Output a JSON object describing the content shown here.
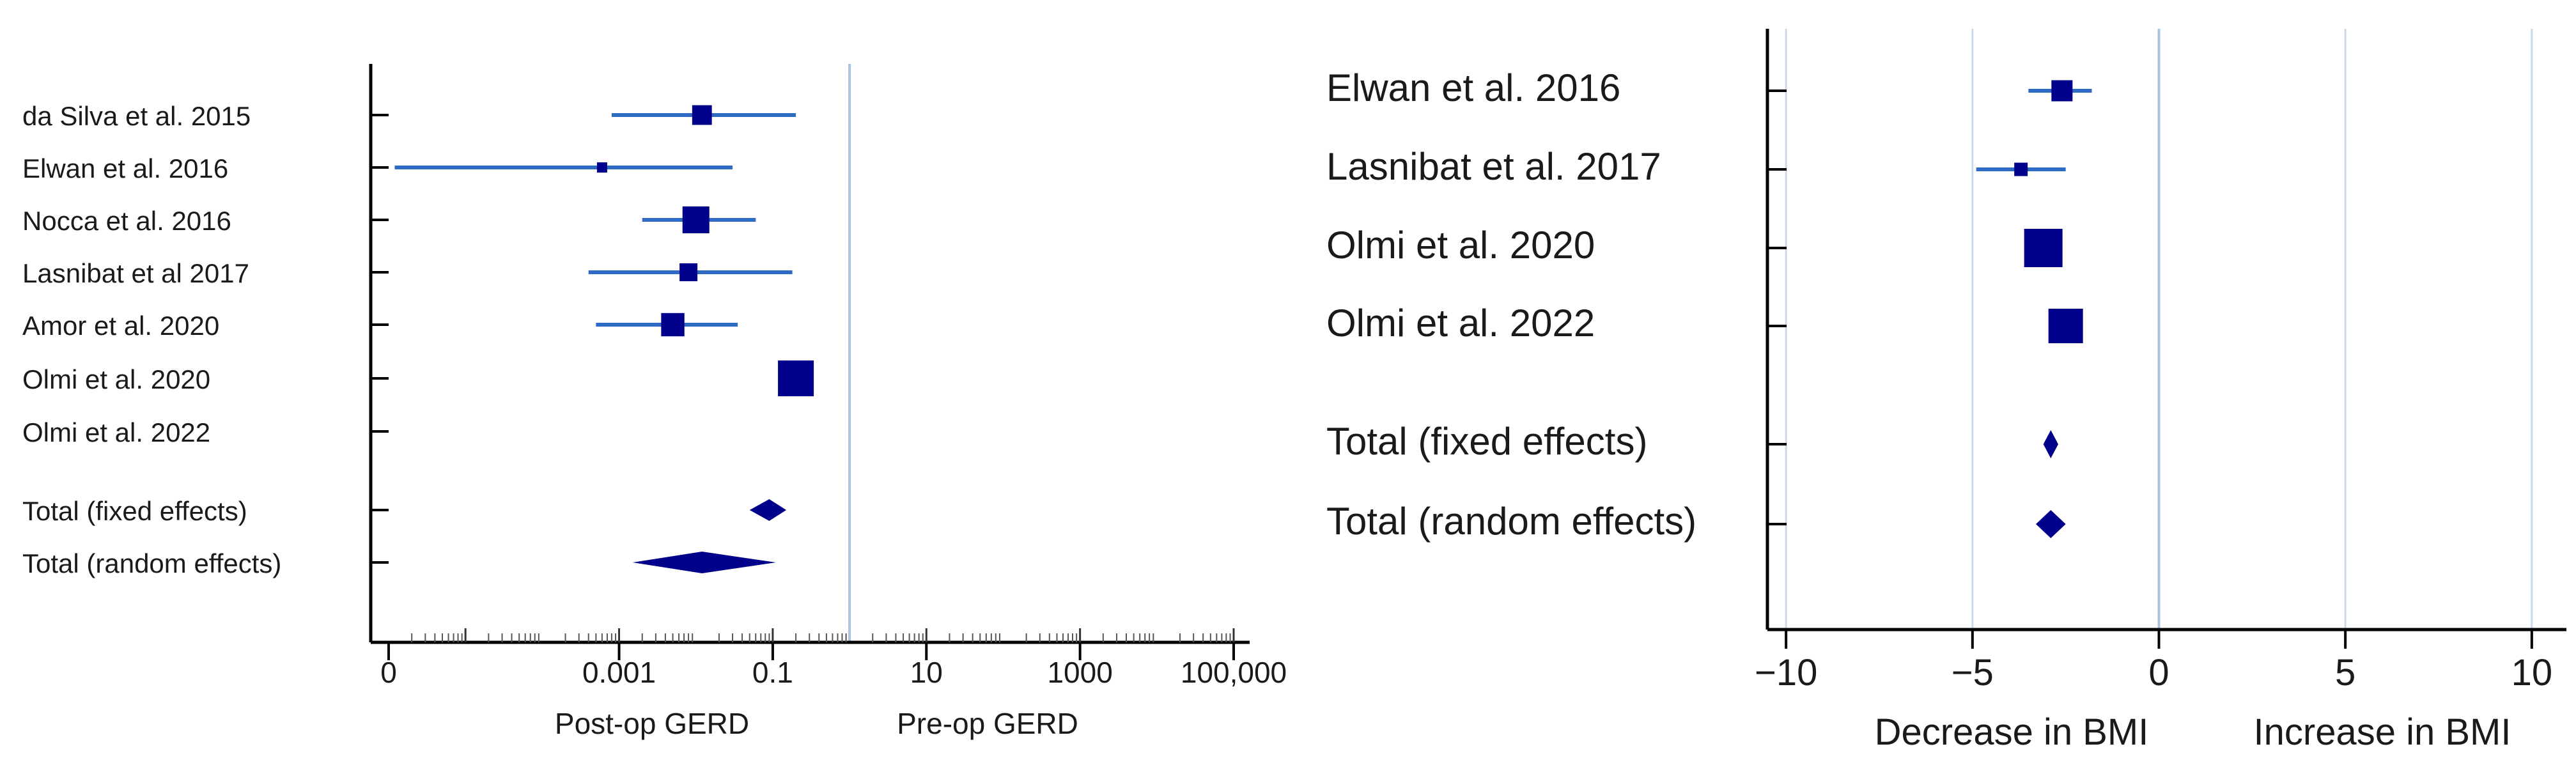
{
  "chart_data": [
    {
      "type": "forest",
      "x_scale": "log",
      "xlim": [
        1e-06,
        100000
      ],
      "ticks": [
        {
          "value": 1e-06,
          "label": "0"
        },
        {
          "value": 0.001,
          "label": "0.001"
        },
        {
          "value": 0.1,
          "label": "0.1"
        },
        {
          "value": 10,
          "label": "10"
        },
        {
          "value": 1000,
          "label": "1000"
        },
        {
          "value": 100000,
          "label": "100,000"
        }
      ],
      "reference_line": 1,
      "direction_labels": {
        "left": "Post-op GERD",
        "right": "Pre-op GERD"
      },
      "studies": [
        {
          "label": "da Silva et al. 2015",
          "estimate": 0.012,
          "ci": [
            0.0008,
            0.2
          ],
          "weight": 0.55
        },
        {
          "label": "Elwan et al. 2016",
          "estimate": 0.0006,
          "ci": [
            1.2e-06,
            0.03
          ],
          "weight": 0.25
        },
        {
          "label": "Nocca et al. 2016",
          "estimate": 0.01,
          "ci": [
            0.002,
            0.06
          ],
          "weight": 0.75
        },
        {
          "label": "Lasnibat et al 2017",
          "estimate": 0.008,
          "ci": [
            0.0004,
            0.18
          ],
          "weight": 0.5
        },
        {
          "label": "Amor et al. 2020",
          "estimate": 0.005,
          "ci": [
            0.0005,
            0.035
          ],
          "weight": 0.65
        },
        {
          "label": "Olmi et al. 2020",
          "estimate": 0.2,
          "ci": null,
          "weight": 1.0
        },
        {
          "label": "Olmi et al. 2022",
          "estimate": null,
          "ci": null,
          "weight": 0
        }
      ],
      "totals": [
        {
          "label": "Total (fixed effects)",
          "estimate": 0.09,
          "ci": [
            0.05,
            0.15
          ]
        },
        {
          "label": "Total (random effects)",
          "estimate": 0.012,
          "ci": [
            0.0015,
            0.11
          ]
        }
      ]
    },
    {
      "type": "forest",
      "x_scale": "linear",
      "xlim": [
        -10.5,
        10.5
      ],
      "ticks": [
        {
          "value": -10,
          "label": "−10"
        },
        {
          "value": -5,
          "label": "−5"
        },
        {
          "value": 0,
          "label": "0"
        },
        {
          "value": 5,
          "label": "5"
        },
        {
          "value": 10,
          "label": "10"
        }
      ],
      "gridlines": [
        -10,
        -5,
        0,
        5,
        10
      ],
      "reference_line": 0,
      "direction_labels": {
        "left": "Decrease in BMI",
        "right": "Increase in BMI"
      },
      "studies": [
        {
          "label": "Elwan et al. 2016",
          "estimate": -2.6,
          "ci": [
            -3.5,
            -1.8
          ],
          "weight": 0.55
        },
        {
          "label": "Lasnibat et al. 2017",
          "estimate": -3.7,
          "ci": [
            -4.9,
            -2.5
          ],
          "weight": 0.35
        },
        {
          "label": "Olmi et al. 2020",
          "estimate": -3.1,
          "ci": null,
          "weight": 1.0
        },
        {
          "label": "Olmi et al. 2022",
          "estimate": -2.5,
          "ci": null,
          "weight": 0.9
        }
      ],
      "totals": [
        {
          "label": "Total (fixed effects)",
          "estimate": -2.9,
          "ci": [
            -3.1,
            -2.7
          ]
        },
        {
          "label": "Total (random effects)",
          "estimate": -2.9,
          "ci": [
            -3.3,
            -2.5
          ]
        }
      ]
    }
  ]
}
